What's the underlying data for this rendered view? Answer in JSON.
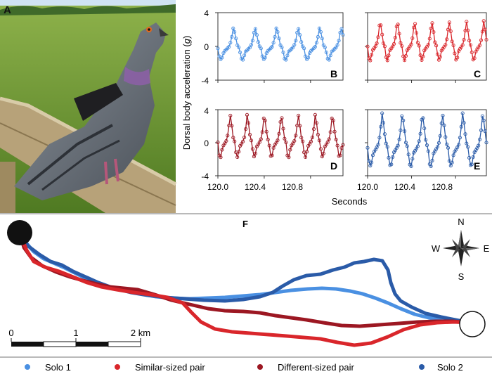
{
  "panel_a": {
    "letter": "A"
  },
  "acc_panels": {
    "ylabel_pre": "Dorsal body acceleration (",
    "ylabel_g": "g",
    "ylabel_post": ")",
    "xlabel": "Seconds",
    "yticks": [
      "4",
      "0",
      "-4"
    ],
    "xticks": [
      "120.0",
      "120.4",
      "120.8"
    ],
    "letters": [
      "B",
      "C",
      "D",
      "E"
    ]
  },
  "chart_data": [
    {
      "type": "line",
      "panel": "B",
      "series_name": "Solo 1",
      "color": "#4a90e2",
      "xlim": [
        120.0,
        121.08
      ],
      "ylim": [
        -4,
        4
      ],
      "x_start": 120.0,
      "period_s": 0.186,
      "wingbeats": 6,
      "peak": 2.3,
      "trough": -1.6,
      "xticks": [
        120.0,
        120.4,
        120.8
      ],
      "yticks": [
        4,
        0,
        -4
      ]
    },
    {
      "type": "line",
      "panel": "C",
      "series_name": "Similar-sized pair",
      "color": "#d9262b",
      "xlim": [
        120.0,
        121.08
      ],
      "ylim": [
        -4,
        4
      ],
      "x_start": 120.0,
      "period_s": 0.157,
      "wingbeats": 7,
      "peak": 3.1,
      "trough": -1.7,
      "xticks": [
        120.0,
        120.4,
        120.8
      ],
      "yticks": [
        4,
        0,
        -4
      ]
    },
    {
      "type": "line",
      "panel": "D",
      "series_name": "Different-sized pair",
      "color": "#9c1722",
      "xlim": [
        120.0,
        121.08
      ],
      "ylim": [
        -4,
        4
      ],
      "x_start": 120.0,
      "period_s": 0.147,
      "wingbeats": 7,
      "peak": 3.5,
      "trough": -1.8,
      "xticks": [
        120.0,
        120.4,
        120.8
      ],
      "yticks": [
        4,
        0,
        -4
      ]
    },
    {
      "type": "line",
      "panel": "E",
      "series_name": "Solo 2",
      "color": "#2a5ba8",
      "xlim": [
        120.0,
        121.08
      ],
      "ylim": [
        -4,
        4
      ],
      "x_start": 120.0,
      "period_s": 0.183,
      "wingbeats": 6,
      "peak": 3.6,
      "trough": -2.9,
      "xticks": [
        120.0,
        120.4,
        120.8
      ],
      "yticks": [
        4,
        0,
        -4
      ]
    }
  ],
  "map": {
    "letter": "F",
    "compass": {
      "n": "N",
      "s": "S",
      "e": "E",
      "w": "W"
    },
    "scale": {
      "ticks": [
        "0",
        "1",
        "2 km"
      ]
    },
    "tracks": [
      {
        "name": "Solo 1",
        "color": "#4a90e2"
      },
      {
        "name": "Similar-sized pair",
        "color": "#d9262b"
      },
      {
        "name": "Different-sized pair",
        "color": "#9c1722"
      },
      {
        "name": "Solo 2",
        "color": "#2a5ba8"
      }
    ]
  },
  "legend": {
    "items": [
      {
        "label": "Solo 1",
        "color": "#4a90e2"
      },
      {
        "label": "Similar-sized pair",
        "color": "#d9262b"
      },
      {
        "label": "Different-sized pair",
        "color": "#9c1722"
      },
      {
        "label": "Solo 2",
        "color": "#2a5ba8"
      }
    ]
  }
}
